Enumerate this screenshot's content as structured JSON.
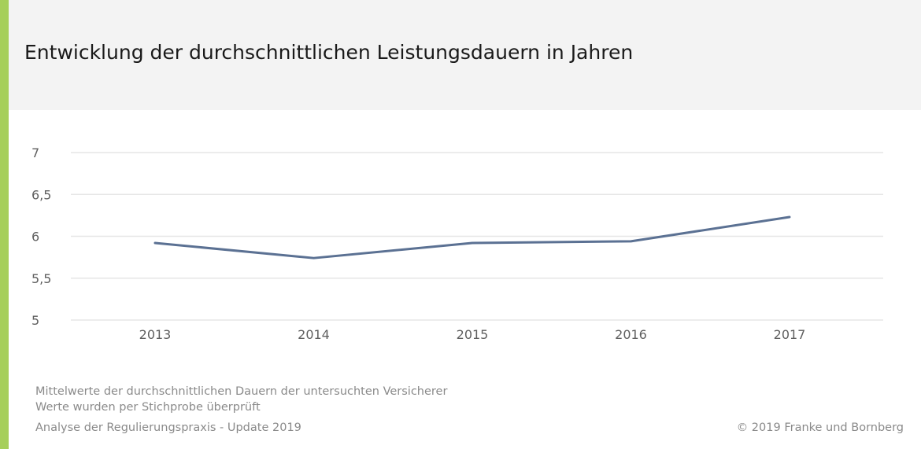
{
  "title": "Entwicklung der durchschnittlichen Leistungsdauern in Jahren",
  "colors": {
    "accent": "#a6cf5a",
    "header_bg": "#f3f3f3",
    "line": "#5b7193",
    "grid": "#e6e6e6"
  },
  "chart_data": {
    "type": "line",
    "categories": [
      "2013",
      "2014",
      "2015",
      "2016",
      "2017"
    ],
    "series": [
      {
        "values": [
          5.92,
          5.74,
          5.92,
          5.94,
          6.23
        ]
      }
    ],
    "ylim": [
      5,
      7
    ],
    "yticks": [
      5,
      5.5,
      6,
      6.5,
      7
    ],
    "ytick_labels": [
      "5",
      "5,5",
      "6",
      "6,5",
      "7"
    ],
    "grid": true,
    "legend": "none"
  },
  "footer": {
    "note1": "Mittelwerte der durchschnittlichen Dauern der untersuchten Versicherer",
    "note2": "Werte wurden per Stichprobe überprüft",
    "note3": "Analyse der Regulierungspraxis - Update 2019",
    "source": "© 2019 Franke und Bornberg"
  }
}
